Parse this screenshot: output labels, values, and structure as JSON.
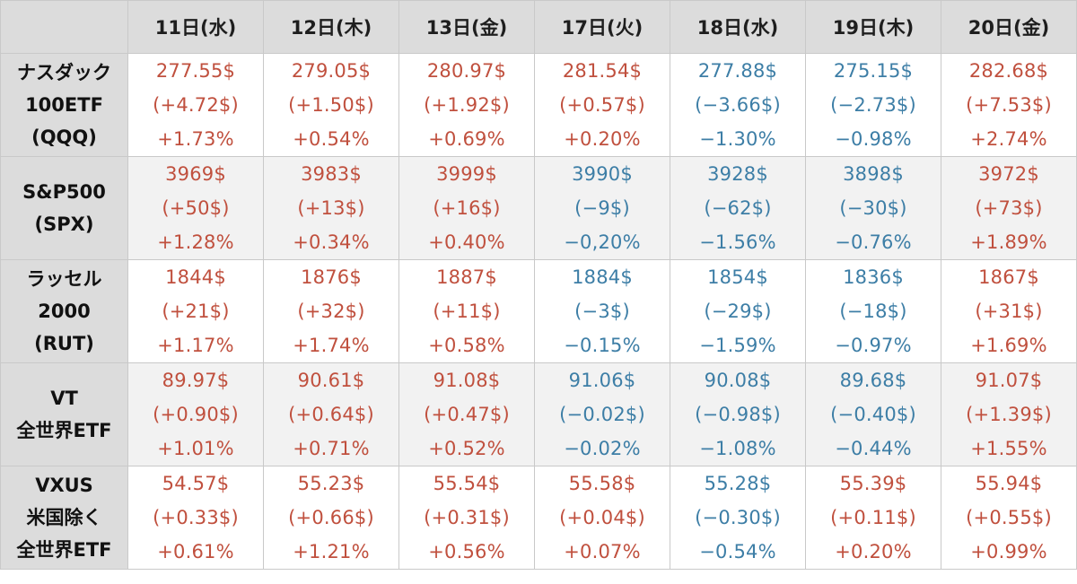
{
  "colors": {
    "up": "#c0503e",
    "down": "#3d7ea6",
    "header_bg": "#dcdcdc"
  },
  "columns": [
    "11日(水)",
    "12日(木)",
    "13日(金)",
    "17日(火)",
    "18日(水)",
    "19日(木)",
    "20日(金)"
  ],
  "rows": [
    {
      "label": [
        "ナスダック",
        "100ETF",
        "(QQQ)"
      ],
      "cells": [
        {
          "price": "277.55$",
          "change": "(+4.72$)",
          "pct": "+1.73%",
          "dir": "up"
        },
        {
          "price": "279.05$",
          "change": "(+1.50$)",
          "pct": "+0.54%",
          "dir": "up"
        },
        {
          "price": "280.97$",
          "change": "(+1.92$)",
          "pct": "+0.69%",
          "dir": "up"
        },
        {
          "price": "281.54$",
          "change": "(+0.57$)",
          "pct": "+0.20%",
          "dir": "up"
        },
        {
          "price": "277.88$",
          "change": "(−3.66$)",
          "pct": "−1.30%",
          "dir": "down"
        },
        {
          "price": "275.15$",
          "change": "(−2.73$)",
          "pct": "−0.98%",
          "dir": "down"
        },
        {
          "price": "282.68$",
          "change": "(+7.53$)",
          "pct": "+2.74%",
          "dir": "up"
        }
      ]
    },
    {
      "label": [
        "S&P500",
        "(SPX)"
      ],
      "cells": [
        {
          "price": "3969$",
          "change": "(+50$)",
          "pct": "+1.28%",
          "dir": "up"
        },
        {
          "price": "3983$",
          "change": "(+13$)",
          "pct": "+0.34%",
          "dir": "up"
        },
        {
          "price": "3999$",
          "change": "(+16$)",
          "pct": "+0.40%",
          "dir": "up"
        },
        {
          "price": "3990$",
          "change": "(−9$)",
          "pct": "−0,20%",
          "dir": "down"
        },
        {
          "price": "3928$",
          "change": "(−62$)",
          "pct": "−1.56%",
          "dir": "down"
        },
        {
          "price": "3898$",
          "change": "(−30$)",
          "pct": "−0.76%",
          "dir": "down"
        },
        {
          "price": "3972$",
          "change": "(+73$)",
          "pct": "+1.89%",
          "dir": "up"
        }
      ]
    },
    {
      "label": [
        "ラッセル",
        "2000",
        "(RUT)"
      ],
      "cells": [
        {
          "price": "1844$",
          "change": "(+21$)",
          "pct": "+1.17%",
          "dir": "up"
        },
        {
          "price": "1876$",
          "change": "(+32$)",
          "pct": "+1.74%",
          "dir": "up"
        },
        {
          "price": "1887$",
          "change": "(+11$)",
          "pct": "+0.58%",
          "dir": "up"
        },
        {
          "price": "1884$",
          "change": "(−3$)",
          "pct": "−0.15%",
          "dir": "down"
        },
        {
          "price": "1854$",
          "change": "(−29$)",
          "pct": "−1.59%",
          "dir": "down"
        },
        {
          "price": "1836$",
          "change": "(−18$)",
          "pct": "−0.97%",
          "dir": "down"
        },
        {
          "price": "1867$",
          "change": "(+31$)",
          "pct": "+1.69%",
          "dir": "up"
        }
      ]
    },
    {
      "label": [
        "VT",
        "全世界ETF"
      ],
      "cells": [
        {
          "price": "89.97$",
          "change": "(+0.90$)",
          "pct": "+1.01%",
          "dir": "up"
        },
        {
          "price": "90.61$",
          "change": "(+0.64$)",
          "pct": "+0.71%",
          "dir": "up"
        },
        {
          "price": "91.08$",
          "change": "(+0.47$)",
          "pct": "+0.52%",
          "dir": "up"
        },
        {
          "price": "91.06$",
          "change": "(−0.02$)",
          "pct": "−0.02%",
          "dir": "down"
        },
        {
          "price": "90.08$",
          "change": "(−0.98$)",
          "pct": "−1.08%",
          "dir": "down"
        },
        {
          "price": "89.68$",
          "change": "(−0.40$)",
          "pct": "−0.44%",
          "dir": "down"
        },
        {
          "price": "91.07$",
          "change": "(+1.39$)",
          "pct": "+1.55%",
          "dir": "up"
        }
      ]
    },
    {
      "label": [
        "VXUS",
        "米国除く",
        "全世界ETF"
      ],
      "cells": [
        {
          "price": "54.57$",
          "change": "(+0.33$)",
          "pct": "+0.61%",
          "dir": "up"
        },
        {
          "price": "55.23$",
          "change": "(+0.66$)",
          "pct": "+1.21%",
          "dir": "up"
        },
        {
          "price": "55.54$",
          "change": "(+0.31$)",
          "pct": "+0.56%",
          "dir": "up"
        },
        {
          "price": "55.58$",
          "change": "(+0.04$)",
          "pct": "+0.07%",
          "dir": "up"
        },
        {
          "price": "55.28$",
          "change": "(−0.30$)",
          "pct": "−0.54%",
          "dir": "down"
        },
        {
          "price": "55.39$",
          "change": "(+0.11$)",
          "pct": "+0.20%",
          "dir": "up"
        },
        {
          "price": "55.94$",
          "change": "(+0.55$)",
          "pct": "+0.99%",
          "dir": "up"
        }
      ]
    }
  ]
}
